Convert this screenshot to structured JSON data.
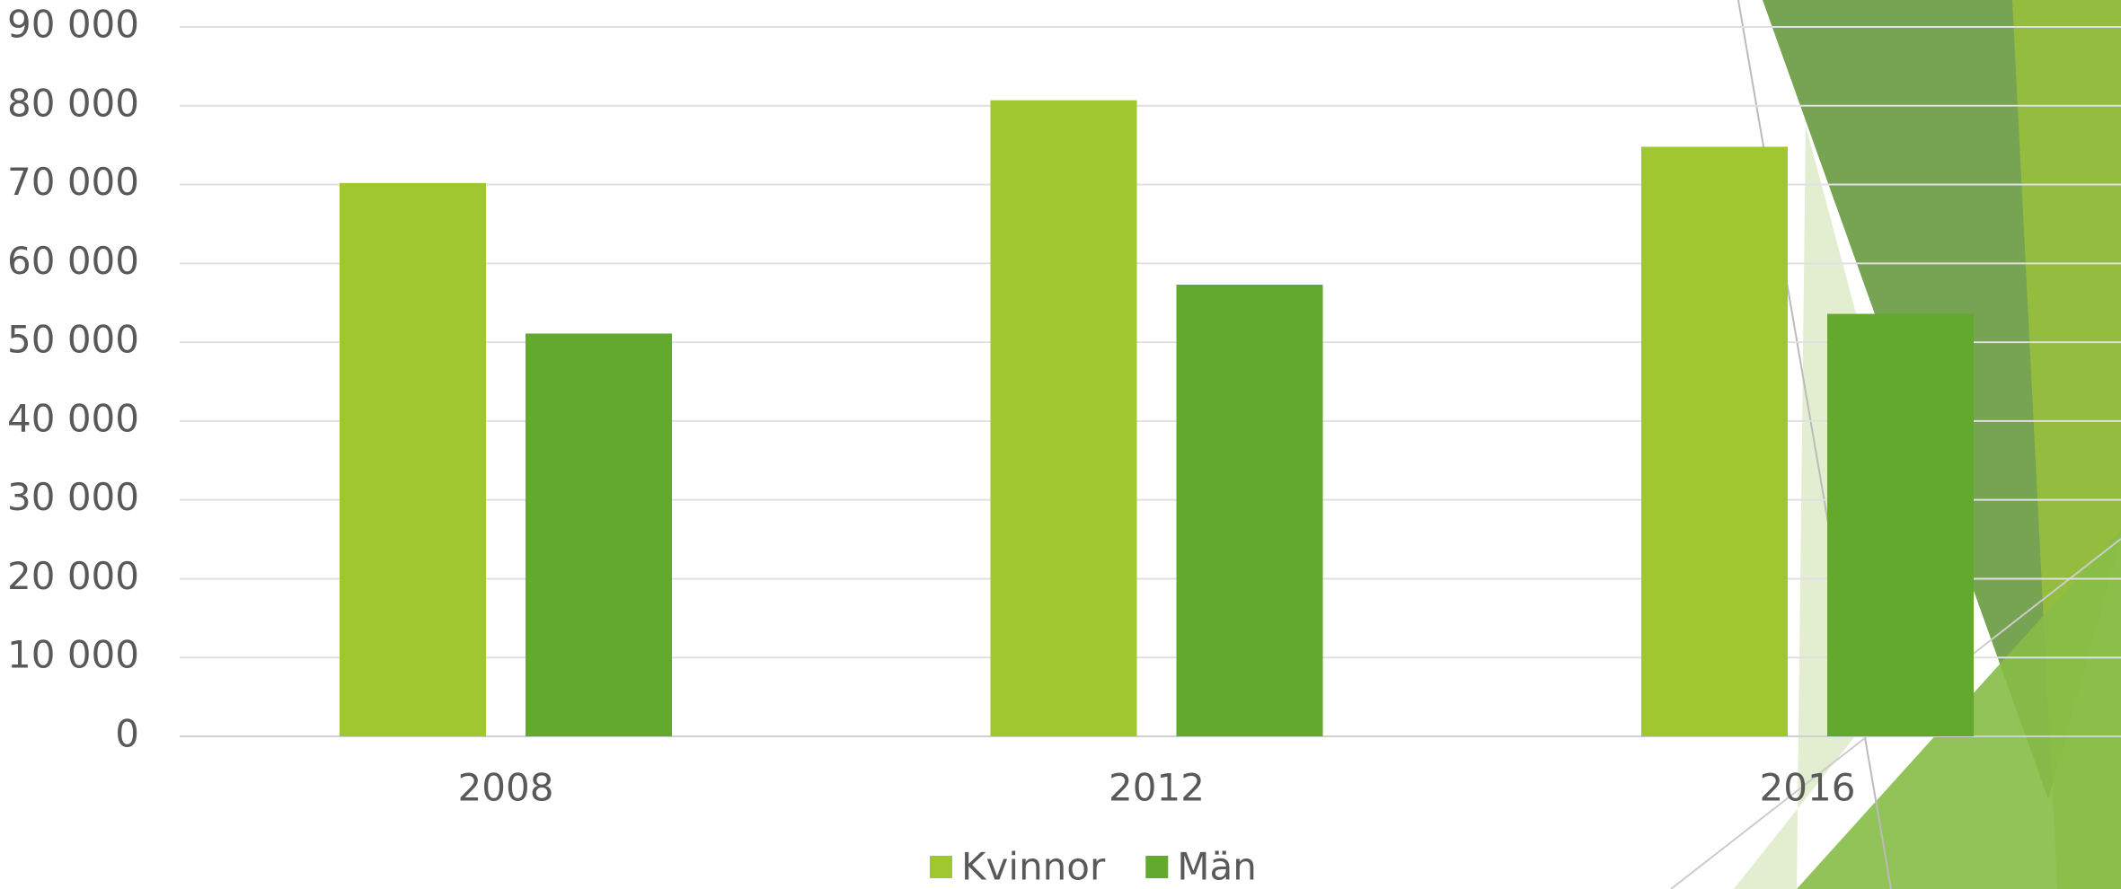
{
  "chart_data": {
    "type": "bar",
    "categories": [
      "2008",
      "2012",
      "2016"
    ],
    "series": [
      {
        "name": "Kvinnor",
        "color": "#a0c630",
        "values": [
          70200,
          80700,
          74800
        ]
      },
      {
        "name": "Män",
        "color": "#62a92d",
        "values": [
          51100,
          57300,
          53600
        ]
      }
    ],
    "ylim": [
      0,
      90000
    ],
    "yticks": [
      {
        "value": 0,
        "label": "0"
      },
      {
        "value": 10000,
        "label": "10 000"
      },
      {
        "value": 20000,
        "label": "20 000"
      },
      {
        "value": 30000,
        "label": "30 000"
      },
      {
        "value": 40000,
        "label": "40 000"
      },
      {
        "value": 50000,
        "label": "50 000"
      },
      {
        "value": 60000,
        "label": "60 000"
      },
      {
        "value": 70000,
        "label": "70 000"
      },
      {
        "value": 80000,
        "label": "80 000"
      },
      {
        "value": 90000,
        "label": "90 000"
      }
    ],
    "grid": true,
    "legend": "bottom"
  }
}
